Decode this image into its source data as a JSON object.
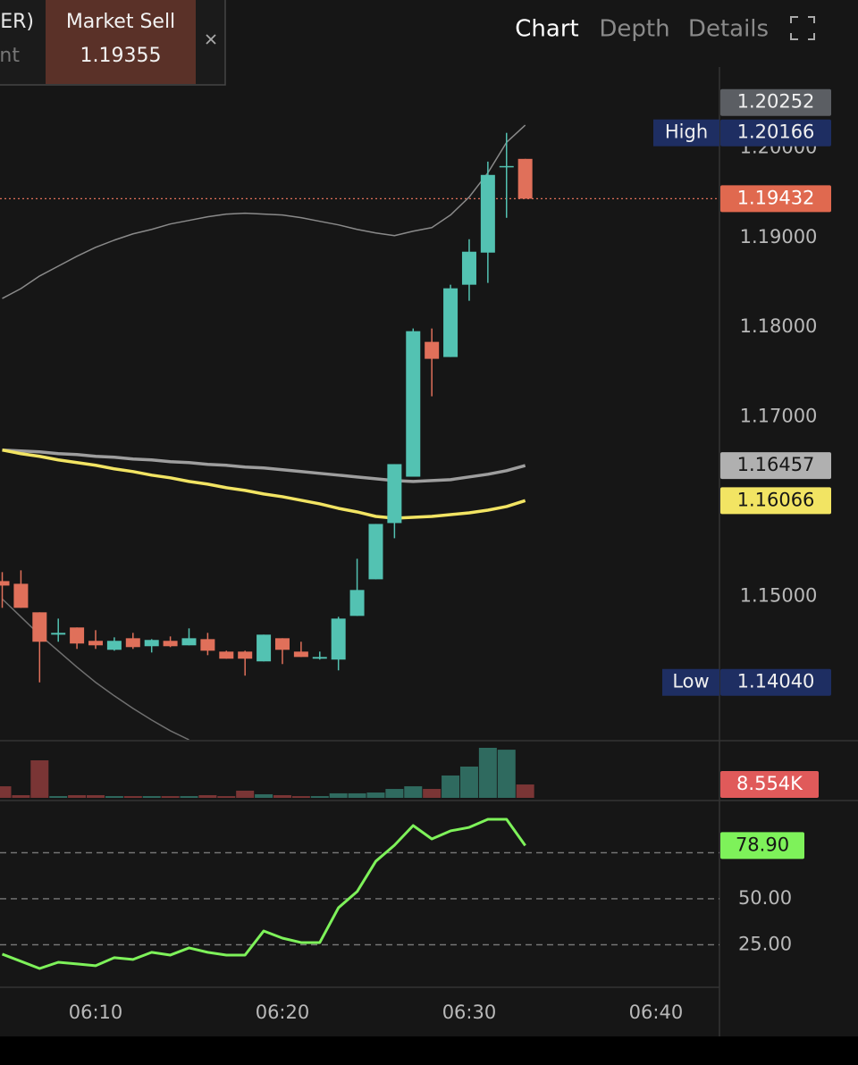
{
  "header": {
    "order_box": {
      "line1": "ER)",
      "line2": "nt"
    },
    "market_sell": {
      "label": "Market Sell",
      "price": "1.19355"
    },
    "tabs": [
      "Chart",
      "Depth",
      "Details"
    ]
  },
  "chart_data": {
    "type": "candlestick",
    "x": [
      365,
      366,
      367,
      368,
      369,
      370,
      371,
      372,
      373,
      374,
      375,
      376,
      377,
      378,
      379,
      380,
      381,
      382,
      383,
      384,
      385,
      386,
      387,
      388,
      389,
      390,
      391,
      392,
      393
    ],
    "xlim": [
      364.88,
      403.4
    ],
    "xticks": [
      {
        "value": 370,
        "label": "06:10"
      },
      {
        "value": 380,
        "label": "06:20"
      },
      {
        "value": 390,
        "label": "06:30"
      },
      {
        "value": 400,
        "label": "06:40"
      }
    ],
    "open": [
      1.15169,
      1.15139,
      1.14821,
      1.14572,
      1.14652,
      1.14503,
      1.14403,
      1.14532,
      1.14443,
      1.14503,
      1.14453,
      1.14522,
      1.14383,
      1.14383,
      1.14274,
      1.14532,
      1.14383,
      1.14304,
      1.14294,
      1.14781,
      1.15189,
      1.15816,
      1.16333,
      1.17836,
      1.17667,
      1.18473,
      1.18831,
      1.19786,
      1.19876
    ],
    "high": [
      1.15269,
      1.15289,
      1.14821,
      1.14751,
      1.14652,
      1.14622,
      1.14542,
      1.14592,
      1.14522,
      1.14552,
      1.14642,
      1.14592,
      1.14393,
      1.14393,
      1.14572,
      1.14532,
      1.14493,
      1.14383,
      1.14771,
      1.15418,
      1.15806,
      1.16473,
      1.17985,
      1.17985,
      1.18473,
      1.1898,
      1.19846,
      1.20166,
      1.19876
    ],
    "low": [
      1.14871,
      1.14871,
      1.1404,
      1.14493,
      1.14413,
      1.14413,
      1.14393,
      1.14413,
      1.14373,
      1.14433,
      1.14453,
      1.14343,
      1.14304,
      1.14115,
      1.14274,
      1.14244,
      1.14323,
      1.14294,
      1.14174,
      1.14781,
      1.15189,
      1.15647,
      1.16333,
      1.17229,
      1.17667,
      1.18294,
      1.18493,
      1.19219,
      1.19432
    ],
    "close": [
      1.15119,
      1.14871,
      1.14493,
      1.14592,
      1.14473,
      1.14453,
      1.14503,
      1.14433,
      1.14513,
      1.14443,
      1.14532,
      1.14393,
      1.14304,
      1.14304,
      1.14572,
      1.14403,
      1.14323,
      1.14323,
      1.14751,
      1.1507,
      1.15806,
      1.16473,
      1.17955,
      1.17647,
      1.18433,
      1.18841,
      1.19697,
      1.19796,
      1.19432
    ],
    "up_color": "#53c2b2",
    "down_color": "#e0705a",
    "ylim": [
      1.134,
      1.209
    ],
    "yticks": [
      {
        "value": 1.14,
        "label": "1.14000"
      },
      {
        "value": 1.15,
        "label": "1.15000"
      },
      {
        "value": 1.16,
        "label": "1.16000"
      },
      {
        "value": 1.17,
        "label": "1.17000"
      },
      {
        "value": 1.18,
        "label": "1.18000"
      },
      {
        "value": 1.19,
        "label": "1.19000"
      },
      {
        "value": 1.2,
        "label": "1.20000"
      }
    ],
    "series": [
      {
        "color": "#8a8a8a",
        "values": [
          1.1832,
          1.1843,
          1.1857,
          1.1868,
          1.1879,
          1.1889,
          1.1897,
          1.1904,
          1.1909,
          1.1915,
          1.1919,
          1.1923,
          1.1926,
          1.1927,
          1.1926,
          1.1925,
          1.1922,
          1.1918,
          1.1914,
          1.1909,
          1.1905,
          1.1902,
          1.1907,
          1.1911,
          1.1925,
          1.1945,
          1.1972,
          1.2006,
          1.20252
        ]
      },
      {
        "color": "#707070",
        "values": [
          1.1497,
          1.1477,
          1.1457,
          1.1439,
          1.1421,
          1.1404,
          1.1389,
          1.1375,
          1.1362,
          1.135,
          1.134,
          null,
          null,
          null,
          null,
          null,
          null,
          null,
          null,
          null,
          null,
          null,
          null,
          null,
          null,
          null,
          null,
          null,
          null
        ]
      },
      {
        "color": "#9e9e9e",
        "values": [
          1.1663,
          1.1662,
          1.1661,
          1.1659,
          1.1658,
          1.1656,
          1.1655,
          1.1653,
          1.1652,
          1.165,
          1.1649,
          1.1647,
          1.1646,
          1.1644,
          1.1643,
          1.1641,
          1.1639,
          1.1637,
          1.1635,
          1.1633,
          1.1631,
          1.1629,
          1.1628,
          1.1629,
          1.163,
          1.1633,
          1.1636,
          1.164,
          1.16457
        ]
      },
      {
        "color": "#f2e463",
        "values": [
          1.1663,
          1.1659,
          1.1656,
          1.1652,
          1.1649,
          1.1646,
          1.1642,
          1.1639,
          1.1635,
          1.1632,
          1.1628,
          1.1625,
          1.1621,
          1.1618,
          1.1614,
          1.1611,
          1.1607,
          1.1603,
          1.1598,
          1.1594,
          1.1589,
          1.1587,
          1.1588,
          1.1589,
          1.1591,
          1.1593,
          1.1596,
          1.16,
          1.16066
        ]
      }
    ],
    "extremes": {
      "high_text": "High",
      "low_text": "Low",
      "low_value_label": "1.14040"
    },
    "volume": {
      "type": "bar",
      "up_color": "#2f6a5f",
      "down_color": "#7a3535",
      "ylim": [
        0,
        36000
      ],
      "values": [
        7400,
        1700,
        24000,
        1100,
        1700,
        1700,
        1100,
        1100,
        1100,
        1100,
        1100,
        1700,
        1100,
        4600,
        2300,
        1700,
        1100,
        1100,
        2900,
        2900,
        3400,
        5700,
        7400,
        5700,
        14300,
        20000,
        32000,
        30800,
        8554
      ],
      "last_value_label": "8.554K"
    },
    "rsi": {
      "type": "line",
      "color": "#7ef25a",
      "ylim": [
        1.9,
        102.9
      ],
      "yticks": [
        {
          "value": 25,
          "label": "25.00"
        },
        {
          "value": 50,
          "label": "50.00"
        },
        {
          "value": 75,
          "label": "75.00"
        }
      ],
      "values": [
        19.9,
        16.0,
        12.1,
        15.5,
        14.6,
        13.6,
        18.0,
        17.0,
        20.9,
        19.4,
        23.3,
        20.9,
        19.4,
        19.4,
        32.5,
        28.6,
        26.2,
        26.2,
        45.1,
        53.9,
        70.4,
        79.1,
        89.8,
        82.5,
        86.9,
        88.8,
        93.2,
        93.2,
        78.9
      ],
      "last_value_label": "78.90"
    }
  }
}
